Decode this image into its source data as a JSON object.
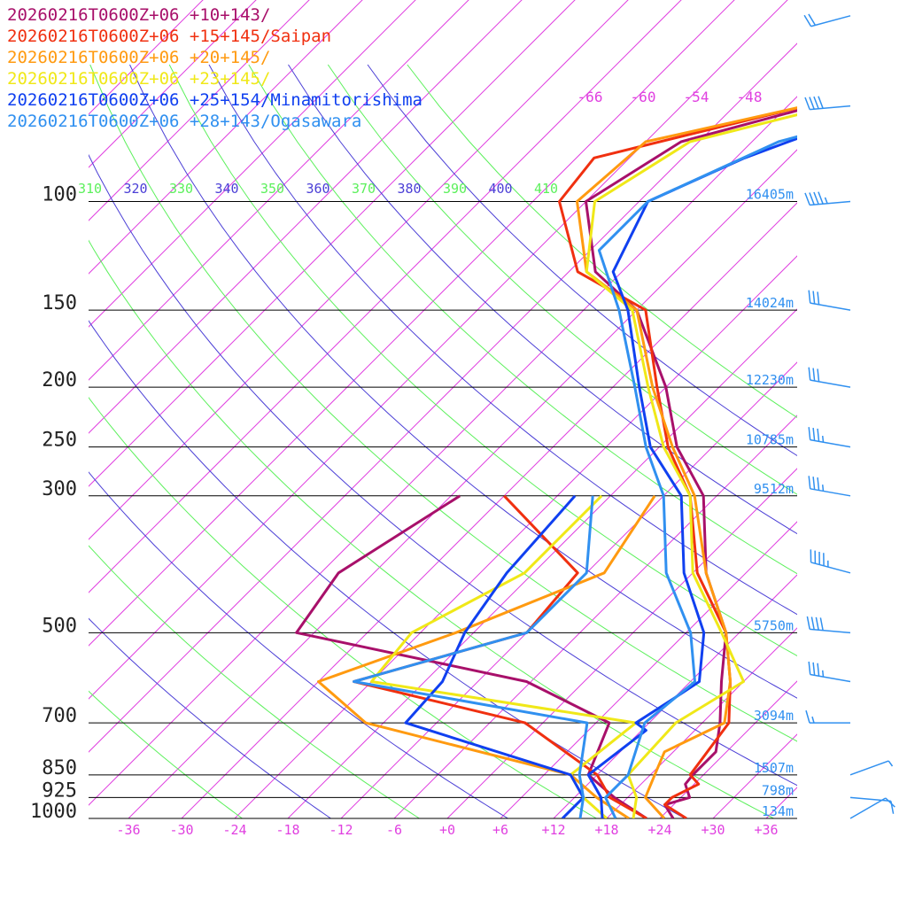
{
  "chart_data": {
    "type": "line",
    "title": "",
    "xlabel": "",
    "ylabel": "",
    "x_scale": "skew-T temperature (°C)",
    "y_scale": "log pressure (hPa)",
    "xlim": [
      -40,
      40
    ],
    "ylim_hpa": [
      1000,
      60
    ],
    "grid": true,
    "legend_position": "top-left",
    "pressure_ticks": [
      {
        "p": 100,
        "label": "100"
      },
      {
        "p": 150,
        "label": "150"
      },
      {
        "p": 200,
        "label": "200"
      },
      {
        "p": 250,
        "label": "250"
      },
      {
        "p": 300,
        "label": "300"
      },
      {
        "p": 500,
        "label": "500"
      },
      {
        "p": 700,
        "label": "700"
      },
      {
        "p": 850,
        "label": "850"
      },
      {
        "p": 925,
        "label": "925"
      },
      {
        "p": 1000,
        "label": "1000"
      }
    ],
    "height_labels": [
      {
        "p": 100,
        "label": "16405m"
      },
      {
        "p": 150,
        "label": "14024m"
      },
      {
        "p": 200,
        "label": "12230m"
      },
      {
        "p": 250,
        "label": "10785m"
      },
      {
        "p": 300,
        "label": "9512m"
      },
      {
        "p": 500,
        "label": "5750m"
      },
      {
        "p": 700,
        "label": "3094m"
      },
      {
        "p": 850,
        "label": "1507m"
      },
      {
        "p": 925,
        "label": "798m"
      },
      {
        "p": 1000,
        "label": "134m"
      }
    ],
    "temp_ticks": [
      {
        "t": -36,
        "label": "-36"
      },
      {
        "t": -30,
        "label": "-30"
      },
      {
        "t": -24,
        "label": "-24"
      },
      {
        "t": -18,
        "label": "-18"
      },
      {
        "t": -12,
        "label": "-12"
      },
      {
        "t": -6,
        "label": "-6"
      },
      {
        "t": 0,
        "label": "+0"
      },
      {
        "t": 6,
        "label": "+6"
      },
      {
        "t": 12,
        "label": "+12"
      },
      {
        "t": 18,
        "label": "+18"
      },
      {
        "t": 24,
        "label": "+24"
      },
      {
        "t": 30,
        "label": "+30"
      },
      {
        "t": 36,
        "label": "+36"
      }
    ],
    "top_temp_labels": [
      {
        "t": -66,
        "label": "-66"
      },
      {
        "t": -60,
        "label": "-60"
      },
      {
        "t": -54,
        "label": "-54"
      },
      {
        "t": -48,
        "label": "-48"
      }
    ],
    "theta_labels": [
      {
        "theta": 310,
        "label": "310",
        "color": "#5cf05c"
      },
      {
        "theta": 320,
        "label": "320",
        "color": "#4b3fd6"
      },
      {
        "theta": 330,
        "label": "330",
        "color": "#5cf05c"
      },
      {
        "theta": 340,
        "label": "340",
        "color": "#4b3fd6"
      },
      {
        "theta": 350,
        "label": "350",
        "color": "#5cf05c"
      },
      {
        "theta": 360,
        "label": "360",
        "color": "#4b3fd6"
      },
      {
        "theta": 370,
        "label": "370",
        "color": "#5cf05c"
      },
      {
        "theta": 380,
        "label": "380",
        "color": "#4b3fd6"
      },
      {
        "theta": 390,
        "label": "390",
        "color": "#5cf05c"
      },
      {
        "theta": 400,
        "label": "400",
        "color": "#4b3fd6"
      },
      {
        "theta": 410,
        "label": "410",
        "color": "#5cf05c"
      }
    ],
    "series": [
      {
        "name": "20260216T0600Z+06 +10+143/",
        "color": "#a8106a",
        "temperature": [
          {
            "p": 1000,
            "t": 25.5
          },
          {
            "p": 950,
            "t": 23.0
          },
          {
            "p": 925,
            "t": 25.0
          },
          {
            "p": 880,
            "t": 23.0
          },
          {
            "p": 850,
            "t": 22.8
          },
          {
            "p": 780,
            "t": 22.8
          },
          {
            "p": 700,
            "t": 20.0
          },
          {
            "p": 600,
            "t": 15.5
          },
          {
            "p": 500,
            "t": 10.5
          },
          {
            "p": 400,
            "t": 1.5
          },
          {
            "p": 300,
            "t": -7.5
          },
          {
            "p": 250,
            "t": -16.0
          },
          {
            "p": 200,
            "t": -24.0
          },
          {
            "p": 150,
            "t": -36.0
          },
          {
            "p": 130,
            "t": -45.0
          },
          {
            "p": 100,
            "t": -54.0
          },
          {
            "p": 80,
            "t": -50.0
          },
          {
            "p": 70,
            "t": -39.0
          },
          {
            "p": 60,
            "t": -21.0
          }
        ],
        "dewpoint": [
          {
            "p": 1000,
            "t": 22.5
          },
          {
            "p": 925,
            "t": 16.5
          },
          {
            "p": 850,
            "t": 11.0
          },
          {
            "p": 700,
            "t": 7.5
          },
          {
            "p": 600,
            "t": -6.5
          },
          {
            "p": 500,
            "t": -38.0
          },
          {
            "p": 400,
            "t": -40.0
          },
          {
            "p": 300,
            "t": -35.0
          }
        ],
        "barbs": [
          {
            "p": 1000,
            "dir": 60,
            "spd": 10
          },
          {
            "p": 925,
            "dir": 95,
            "spd": 10
          },
          {
            "p": 850,
            "dir": 70,
            "spd": 5
          },
          {
            "p": 700,
            "dir": 270,
            "spd": 15
          },
          {
            "p": 600,
            "dir": 280,
            "spd": 35
          },
          {
            "p": 500,
            "dir": 275,
            "spd": 40
          },
          {
            "p": 400,
            "dir": 285,
            "spd": 45
          },
          {
            "p": 300,
            "dir": 280,
            "spd": 35
          },
          {
            "p": 250,
            "dir": 280,
            "spd": 35
          },
          {
            "p": 200,
            "dir": 280,
            "spd": 30
          },
          {
            "p": 150,
            "dir": 280,
            "spd": 30
          },
          {
            "p": 100,
            "dir": 265,
            "spd": 45
          },
          {
            "p": 70,
            "dir": 265,
            "spd": 40
          },
          {
            "p": 50,
            "dir": 255,
            "spd": 20
          }
        ]
      },
      {
        "name": "20260216T0600Z+06 +15+145/Saipan",
        "color": "#f03010",
        "temperature": [
          {
            "p": 1000,
            "t": 27.0
          },
          {
            "p": 950,
            "t": 23.0
          },
          {
            "p": 925,
            "t": 23.0
          },
          {
            "p": 880,
            "t": 24.5
          },
          {
            "p": 850,
            "t": 22.5
          },
          {
            "p": 700,
            "t": 21.0
          },
          {
            "p": 600,
            "t": 16.5
          },
          {
            "p": 500,
            "t": 10.5
          },
          {
            "p": 400,
            "t": 0.5
          },
          {
            "p": 300,
            "t": -9.0
          },
          {
            "p": 250,
            "t": -17.0
          },
          {
            "p": 200,
            "t": -25.0
          },
          {
            "p": 150,
            "t": -35.0
          },
          {
            "p": 130,
            "t": -47.0
          },
          {
            "p": 100,
            "t": -57.0
          },
          {
            "p": 85,
            "t": -58.0
          },
          {
            "p": 70,
            "t": -40.0
          },
          {
            "p": 60,
            "t": -23.0
          }
        ],
        "dewpoint": [
          {
            "p": 1000,
            "t": 22.5
          },
          {
            "p": 925,
            "t": 16.0
          },
          {
            "p": 850,
            "t": 12.0
          },
          {
            "p": 700,
            "t": -2.0
          },
          {
            "p": 600,
            "t": -26.0
          },
          {
            "p": 500,
            "t": -12.0
          },
          {
            "p": 400,
            "t": -13.0
          },
          {
            "p": 300,
            "t": -30.0
          }
        ]
      },
      {
        "name": "20260216T0600Z+06 +20+145/",
        "color": "#ff9a10",
        "temperature": [
          {
            "p": 1000,
            "t": 24.5
          },
          {
            "p": 925,
            "t": 20.0
          },
          {
            "p": 850,
            "t": 18.5
          },
          {
            "p": 780,
            "t": 17.0
          },
          {
            "p": 700,
            "t": 20.5
          },
          {
            "p": 600,
            "t": 16.5
          },
          {
            "p": 500,
            "t": 10.5
          },
          {
            "p": 400,
            "t": 1.5
          },
          {
            "p": 300,
            "t": -8.5
          },
          {
            "p": 250,
            "t": -16.5
          },
          {
            "p": 200,
            "t": -25.5
          },
          {
            "p": 150,
            "t": -36.0
          },
          {
            "p": 130,
            "t": -46.0
          },
          {
            "p": 100,
            "t": -55.0
          },
          {
            "p": 80,
            "t": -54.0
          },
          {
            "p": 70,
            "t": -40.0
          },
          {
            "p": 60,
            "t": -24.0
          }
        ],
        "dewpoint": [
          {
            "p": 1000,
            "t": 20.5
          },
          {
            "p": 925,
            "t": 14.5
          },
          {
            "p": 850,
            "t": 9.0
          },
          {
            "p": 700,
            "t": -20.0
          },
          {
            "p": 600,
            "t": -30.0
          },
          {
            "p": 500,
            "t": -20.0
          },
          {
            "p": 400,
            "t": -10.0
          },
          {
            "p": 300,
            "t": -13.0
          }
        ]
      },
      {
        "name": "20260216T0600Z+06 +23+145/",
        "color": "#f0e818",
        "temperature": [
          {
            "p": 1000,
            "t": 21.0
          },
          {
            "p": 925,
            "t": 19.0
          },
          {
            "p": 850,
            "t": 15.5
          },
          {
            "p": 700,
            "t": 15.0
          },
          {
            "p": 600,
            "t": 18.0
          },
          {
            "p": 500,
            "t": 10.0
          },
          {
            "p": 400,
            "t": 0.0
          },
          {
            "p": 300,
            "t": -9.0
          },
          {
            "p": 250,
            "t": -17.5
          },
          {
            "p": 200,
            "t": -26.0
          },
          {
            "p": 150,
            "t": -36.5
          },
          {
            "p": 130,
            "t": -46.0
          },
          {
            "p": 100,
            "t": -53.0
          },
          {
            "p": 80,
            "t": -49.0
          },
          {
            "p": 70,
            "t": -37.0
          },
          {
            "p": 60,
            "t": -26.0
          }
        ],
        "dewpoint": [
          {
            "p": 1000,
            "t": 18.0
          },
          {
            "p": 925,
            "t": 13.0
          },
          {
            "p": 850,
            "t": 9.0
          },
          {
            "p": 700,
            "t": 10.5
          },
          {
            "p": 600,
            "t": -24.0
          },
          {
            "p": 500,
            "t": -25.0
          },
          {
            "p": 400,
            "t": -19.0
          },
          {
            "p": 300,
            "t": -19.0
          }
        ]
      },
      {
        "name": "20260216T0600Z+06 +25+154/Minamitorishima",
        "color": "#1040f0",
        "temperature": [
          {
            "p": 1000,
            "t": 17.5
          },
          {
            "p": 925,
            "t": 15.0
          },
          {
            "p": 850,
            "t": 11.0
          },
          {
            "p": 720,
            "t": 12.5
          },
          {
            "p": 700,
            "t": 10.5
          },
          {
            "p": 640,
            "t": 12.0
          },
          {
            "p": 600,
            "t": 13.0
          },
          {
            "p": 500,
            "t": 8.0
          },
          {
            "p": 400,
            "t": -1.0
          },
          {
            "p": 300,
            "t": -10.0
          },
          {
            "p": 250,
            "t": -19.0
          },
          {
            "p": 200,
            "t": -27.0
          },
          {
            "p": 150,
            "t": -37.0
          },
          {
            "p": 130,
            "t": -43.0
          },
          {
            "p": 100,
            "t": -47.0
          },
          {
            "p": 85,
            "t": -41.0
          },
          {
            "p": 70,
            "t": -31.0
          },
          {
            "p": 60,
            "t": -20.0
          }
        ],
        "dewpoint": [
          {
            "p": 1000,
            "t": 13.0
          },
          {
            "p": 925,
            "t": 13.0
          },
          {
            "p": 850,
            "t": 9.0
          },
          {
            "p": 700,
            "t": -15.5
          },
          {
            "p": 600,
            "t": -16.0
          },
          {
            "p": 500,
            "t": -19.0
          },
          {
            "p": 400,
            "t": -21.0
          },
          {
            "p": 300,
            "t": -22.0
          }
        ]
      },
      {
        "name": "20260216T0600Z+06 +28+143/Ogasawara",
        "color": "#3090f0",
        "temperature": [
          {
            "p": 1000,
            "t": 19.0
          },
          {
            "p": 925,
            "t": 15.5
          },
          {
            "p": 850,
            "t": 15.5
          },
          {
            "p": 700,
            "t": 11.5
          },
          {
            "p": 600,
            "t": 12.5
          },
          {
            "p": 500,
            "t": 6.5
          },
          {
            "p": 400,
            "t": -3.0
          },
          {
            "p": 300,
            "t": -12.0
          },
          {
            "p": 250,
            "t": -19.5
          },
          {
            "p": 200,
            "t": -27.5
          },
          {
            "p": 150,
            "t": -38.0
          },
          {
            "p": 120,
            "t": -47.0
          },
          {
            "p": 100,
            "t": -47.0
          },
          {
            "p": 80,
            "t": -39.0
          },
          {
            "p": 70,
            "t": -28.0
          },
          {
            "p": 60,
            "t": -18.0
          }
        ],
        "dewpoint": [
          {
            "p": 1000,
            "t": 15.0
          },
          {
            "p": 925,
            "t": 13.0
          },
          {
            "p": 850,
            "t": 10.0
          },
          {
            "p": 700,
            "t": 5.0
          },
          {
            "p": 600,
            "t": -26.0
          },
          {
            "p": 500,
            "t": -12.0
          },
          {
            "p": 400,
            "t": -12.0
          },
          {
            "p": 300,
            "t": -20.0
          }
        ]
      }
    ]
  }
}
